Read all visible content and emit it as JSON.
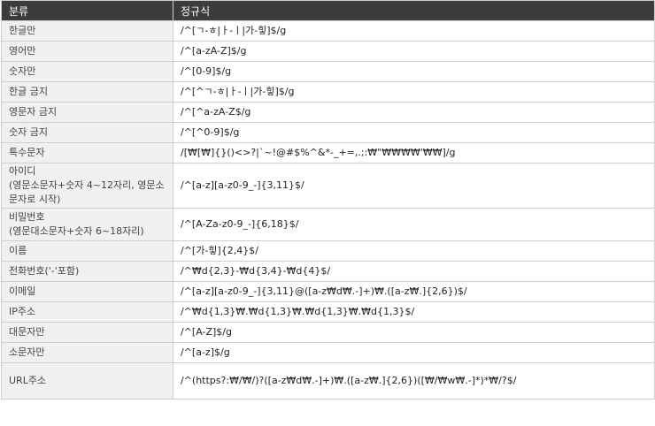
{
  "header": {
    "col_category": "분류",
    "col_regex": "정규식"
  },
  "rows": [
    {
      "name": "한글만",
      "pattern": "/^[ㄱ-ㅎ|ㅏ-ㅣ|가-힣]$/g"
    },
    {
      "name": "영어만",
      "pattern": "/^[a-zA-Z]$/g"
    },
    {
      "name": "숫자만",
      "pattern": "/^[0-9]$/g"
    },
    {
      "name": "한글 금지",
      "pattern": "/^[^ㄱ-ㅎ|ㅏ-ㅣ|가-힣]$/g"
    },
    {
      "name": "영문자 금지",
      "pattern": "/^[^a-zA-Z$/g"
    },
    {
      "name": "숫자 금지",
      "pattern": "/^[^0-9]$/g"
    },
    {
      "name": "특수문자",
      "pattern": "/[₩[₩]{}()<>?|`~!@#$%^&*-_+=,.;:₩\"₩₩₩₩'₩₩]/g"
    },
    {
      "name": "아이디\n(영문소문자+숫자 4~12자리, 영문소문자로 시작)",
      "pattern": "/^[a-z][a-z0-9_-]{3,11}$/"
    },
    {
      "name": "비밀번호\n(영문대소문자+숫자 6~18자리)",
      "pattern": "/^[A-Za-z0-9_-]{6,18}$/"
    },
    {
      "name": "이름",
      "pattern": "/^[가-힣]{2,4}$/"
    },
    {
      "name": "전화번호('-'포함)",
      "pattern": "/^₩d{2,3}-₩d{3,4}-₩d{4}$/"
    },
    {
      "name": "이메일",
      "pattern": "/^[a-z][a-z0-9_-]{3,11}@([a-z₩d₩.-]+)₩.([a-z₩.]{2,6})$/"
    },
    {
      "name": "IP주소",
      "pattern": "/^₩d{1,3}₩.₩d{1,3}₩.₩d{1,3}₩.₩d{1,3}$/"
    },
    {
      "name": "대문자만",
      "pattern": "/^[A-Z]$/g"
    },
    {
      "name": "소문자만",
      "pattern": "/^[a-z]$/g"
    },
    {
      "name": "URL주소",
      "pattern": "/^(https?:₩/₩/)?([a-z₩d₩.-]+)₩.([a-z₩.]{2,6})([₩/₩w₩.-]*)*₩/?$/"
    }
  ]
}
